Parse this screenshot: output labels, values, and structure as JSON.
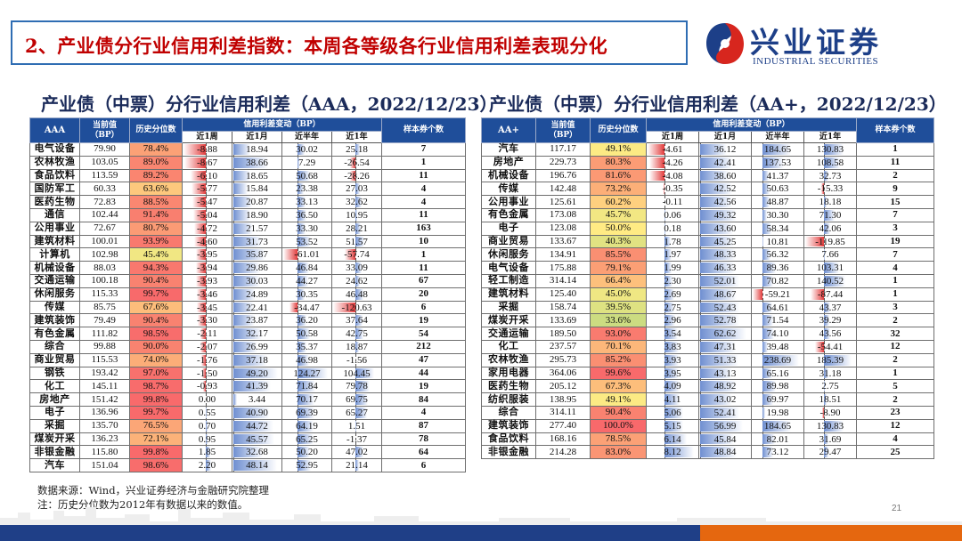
{
  "slide": {
    "title": "2、产业债分行业信用利差指数：本周各等级各行业信用利差表现分化",
    "page_number": "21",
    "footnotes": [
      "数据来源：Wind，兴业证券经济与金融研究院整理",
      "注：历史分位数为2012年有数据以来的数值。"
    ]
  },
  "logo": {
    "cn": "兴业证券",
    "en": "INDUSTRIAL SECURITIES",
    "colors": {
      "blue": "#1d3f88",
      "red": "#d7261e"
    }
  },
  "colors": {
    "accent_red": "#c00000",
    "header_blue": "#1f4e9a",
    "bar_positive": "#6f8fd1",
    "bar_negative": "#e23b3b",
    "stripe_blue": "#1f3f87",
    "stripe_orange": "#e5670f"
  },
  "headers": {
    "current": "当前值",
    "unit": "（BP）",
    "pct": "历史分位数",
    "change_group": "信用利差变动（BP）",
    "cnt": "样本券个数",
    "periods": [
      "近1周",
      "近1月",
      "近半年",
      "近1年"
    ]
  },
  "left_panel": {
    "title": "产业债（中票）分行业信用利差（AAA，2022/12/23）",
    "rating": "AAA",
    "rows": [
      {
        "name": "电气设备",
        "cur": "79.90",
        "pct": "78.4%",
        "w": "-8.88",
        "m": "18.94",
        "h": "30.02",
        "y": "25.18",
        "n": "7"
      },
      {
        "name": "农林牧渔",
        "cur": "103.05",
        "pct": "89.0%",
        "w": "-8.67",
        "m": "38.66",
        "h": "7.29",
        "y": "-26.54",
        "n": "1"
      },
      {
        "name": "食品饮料",
        "cur": "113.59",
        "pct": "89.2%",
        "w": "-6.10",
        "m": "18.65",
        "h": "50.68",
        "y": "-28.26",
        "n": "11"
      },
      {
        "name": "国防军工",
        "cur": "60.33",
        "pct": "63.6%",
        "w": "-5.77",
        "m": "15.84",
        "h": "23.38",
        "y": "27.03",
        "n": "4"
      },
      {
        "name": "医药生物",
        "cur": "72.83",
        "pct": "88.5%",
        "w": "-5.47",
        "m": "20.87",
        "h": "33.13",
        "y": "32.62",
        "n": "4"
      },
      {
        "name": "通信",
        "cur": "102.44",
        "pct": "91.4%",
        "w": "-5.04",
        "m": "18.90",
        "h": "36.50",
        "y": "10.95",
        "n": "11"
      },
      {
        "name": "公用事业",
        "cur": "72.67",
        "pct": "80.7%",
        "w": "-4.72",
        "m": "21.57",
        "h": "33.30",
        "y": "28.21",
        "n": "163"
      },
      {
        "name": "建筑材料",
        "cur": "100.01",
        "pct": "93.9%",
        "w": "-4.60",
        "m": "31.73",
        "h": "53.52",
        "y": "51.57",
        "n": "10"
      },
      {
        "name": "计算机",
        "cur": "102.98",
        "pct": "45.4%",
        "w": "-3.95",
        "m": "35.87",
        "h": "-61.01",
        "y": "-57.74",
        "n": "1"
      },
      {
        "name": "机械设备",
        "cur": "88.03",
        "pct": "94.3%",
        "w": "-3.94",
        "m": "29.86",
        "h": "46.84",
        "y": "33.09",
        "n": "11"
      },
      {
        "name": "交通运输",
        "cur": "100.18",
        "pct": "90.4%",
        "w": "-3.93",
        "m": "30.03",
        "h": "44.27",
        "y": "24.62",
        "n": "67"
      },
      {
        "name": "休闲服务",
        "cur": "115.33",
        "pct": "99.7%",
        "w": "-3.46",
        "m": "24.89",
        "h": "30.35",
        "y": "46.48",
        "n": "20"
      },
      {
        "name": "传媒",
        "cur": "85.75",
        "pct": "67.6%",
        "w": "-3.45",
        "m": "22.41",
        "h": "-34.47",
        "y": "-120.63",
        "n": "6"
      },
      {
        "name": "建筑装饰",
        "cur": "79.49",
        "pct": "90.4%",
        "w": "-3.30",
        "m": "23.87",
        "h": "36.20",
        "y": "37.64",
        "n": "19"
      },
      {
        "name": "有色金属",
        "cur": "111.82",
        "pct": "98.5%",
        "w": "-2.11",
        "m": "32.17",
        "h": "50.58",
        "y": "42.75",
        "n": "54"
      },
      {
        "name": "综合",
        "cur": "99.88",
        "pct": "90.0%",
        "w": "-2.07",
        "m": "26.99",
        "h": "35.37",
        "y": "18.87",
        "n": "212"
      },
      {
        "name": "商业贸易",
        "cur": "115.53",
        "pct": "74.0%",
        "w": "-1.76",
        "m": "37.18",
        "h": "46.98",
        "y": "-1.56",
        "n": "47"
      },
      {
        "name": "钢铁",
        "cur": "193.42",
        "pct": "97.0%",
        "w": "-1.50",
        "m": "49.20",
        "h": "124.27",
        "y": "104.45",
        "n": "44"
      },
      {
        "name": "化工",
        "cur": "145.11",
        "pct": "98.7%",
        "w": "-0.93",
        "m": "41.39",
        "h": "71.84",
        "y": "79.78",
        "n": "19"
      },
      {
        "name": "房地产",
        "cur": "151.42",
        "pct": "99.8%",
        "w": "0.00",
        "m": "3.44",
        "h": "70.17",
        "y": "69.75",
        "n": "84"
      },
      {
        "name": "电子",
        "cur": "136.96",
        "pct": "99.7%",
        "w": "0.55",
        "m": "40.90",
        "h": "69.39",
        "y": "65.27",
        "n": "4"
      },
      {
        "name": "采掘",
        "cur": "135.70",
        "pct": "76.5%",
        "w": "0.70",
        "m": "44.72",
        "h": "64.19",
        "y": "1.51",
        "n": "87"
      },
      {
        "name": "煤炭开采",
        "cur": "136.23",
        "pct": "72.1%",
        "w": "0.95",
        "m": "45.57",
        "h": "65.25",
        "y": "-1.37",
        "n": "78"
      },
      {
        "name": "非银金融",
        "cur": "115.80",
        "pct": "99.8%",
        "w": "1.85",
        "m": "32.68",
        "h": "50.20",
        "y": "47.02",
        "n": "64"
      },
      {
        "name": "汽车",
        "cur": "151.04",
        "pct": "98.6%",
        "w": "2.20",
        "m": "48.14",
        "h": "52.95",
        "y": "21.14",
        "n": "6"
      }
    ]
  },
  "right_panel": {
    "title": "产业债（中票）分行业信用利差（AA+，2022/12/23）",
    "rating": "AA+",
    "rows": [
      {
        "name": "汽车",
        "cur": "117.17",
        "pct": "49.1%",
        "w": "-4.61",
        "m": "36.12",
        "h": "184.65",
        "y": "130.83",
        "n": "1"
      },
      {
        "name": "房地产",
        "cur": "229.73",
        "pct": "80.3%",
        "w": "-4.26",
        "m": "42.41",
        "h": "137.53",
        "y": "108.58",
        "n": "11"
      },
      {
        "name": "机械设备",
        "cur": "196.76",
        "pct": "81.6%",
        "w": "-4.08",
        "m": "38.60",
        "h": "41.37",
        "y": "32.73",
        "n": "2"
      },
      {
        "name": "传媒",
        "cur": "142.48",
        "pct": "73.2%",
        "w": "-0.35",
        "m": "42.52",
        "h": "50.63",
        "y": "-15.33",
        "n": "9"
      },
      {
        "name": "公用事业",
        "cur": "125.61",
        "pct": "60.2%",
        "w": "-0.11",
        "m": "42.56",
        "h": "48.87",
        "y": "18.18",
        "n": "15"
      },
      {
        "name": "有色金属",
        "cur": "173.08",
        "pct": "45.7%",
        "w": "0.06",
        "m": "49.32",
        "h": "30.30",
        "y": "71.30",
        "n": "7"
      },
      {
        "name": "电子",
        "cur": "123.08",
        "pct": "50.0%",
        "w": "0.18",
        "m": "43.60",
        "h": "58.34",
        "y": "42.06",
        "n": "3"
      },
      {
        "name": "商业贸易",
        "cur": "133.67",
        "pct": "40.3%",
        "w": "1.78",
        "m": "45.25",
        "h": "10.81",
        "y": "-119.85",
        "n": "19"
      },
      {
        "name": "休闲服务",
        "cur": "134.91",
        "pct": "85.5%",
        "w": "1.97",
        "m": "48.33",
        "h": "56.32",
        "y": "7.66",
        "n": "7"
      },
      {
        "name": "电气设备",
        "cur": "175.88",
        "pct": "79.1%",
        "w": "1.99",
        "m": "46.33",
        "h": "89.36",
        "y": "103.31",
        "n": "4"
      },
      {
        "name": "轻工制造",
        "cur": "314.14",
        "pct": "66.4%",
        "w": "2.30",
        "m": "52.01",
        "h": "70.82",
        "y": "140.52",
        "n": "1"
      },
      {
        "name": "建筑材料",
        "cur": "125.40",
        "pct": "45.0%",
        "w": "2.69",
        "m": "48.67",
        "h": "-59.21",
        "y": "-87.44",
        "n": "1"
      },
      {
        "name": "采掘",
        "cur": "158.74",
        "pct": "39.5%",
        "w": "2.75",
        "m": "52.43",
        "h": "64.61",
        "y": "43.37",
        "n": "3"
      },
      {
        "name": "煤炭开采",
        "cur": "133.69",
        "pct": "33.6%",
        "w": "2.96",
        "m": "52.78",
        "h": "71.54",
        "y": "39.29",
        "n": "2"
      },
      {
        "name": "交通运输",
        "cur": "189.50",
        "pct": "93.0%",
        "w": "3.54",
        "m": "62.62",
        "h": "74.10",
        "y": "43.56",
        "n": "32"
      },
      {
        "name": "化工",
        "cur": "237.57",
        "pct": "70.1%",
        "w": "3.83",
        "m": "47.31",
        "h": "39.48",
        "y": "-54.41",
        "n": "12"
      },
      {
        "name": "农林牧渔",
        "cur": "295.73",
        "pct": "85.2%",
        "w": "3.93",
        "m": "51.33",
        "h": "238.69",
        "y": "185.39",
        "n": "2"
      },
      {
        "name": "家用电器",
        "cur": "364.06",
        "pct": "99.6%",
        "w": "3.95",
        "m": "43.13",
        "h": "65.16",
        "y": "31.18",
        "n": "1"
      },
      {
        "name": "医药生物",
        "cur": "205.12",
        "pct": "67.3%",
        "w": "4.09",
        "m": "48.92",
        "h": "89.98",
        "y": "2.75",
        "n": "5"
      },
      {
        "name": "纺织服装",
        "cur": "138.95",
        "pct": "49.1%",
        "w": "4.11",
        "m": "43.02",
        "h": "69.97",
        "y": "18.51",
        "n": "2"
      },
      {
        "name": "综合",
        "cur": "314.11",
        "pct": "90.4%",
        "w": "5.06",
        "m": "52.41",
        "h": "19.98",
        "y": "-8.90",
        "n": "23"
      },
      {
        "name": "建筑装饰",
        "cur": "277.40",
        "pct": "100.0%",
        "w": "5.15",
        "m": "56.99",
        "h": "184.65",
        "y": "130.83",
        "n": "12"
      },
      {
        "name": "食品饮料",
        "cur": "168.16",
        "pct": "78.5%",
        "w": "6.14",
        "m": "45.84",
        "h": "82.01",
        "y": "31.69",
        "n": "4"
      },
      {
        "name": "非银金融",
        "cur": "214.28",
        "pct": "83.0%",
        "w": "8.12",
        "m": "48.84",
        "h": "73.12",
        "y": "29.47",
        "n": "25"
      }
    ]
  }
}
